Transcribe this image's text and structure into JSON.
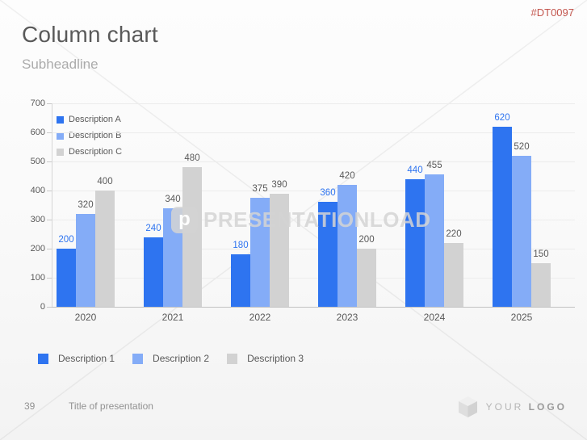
{
  "header": {
    "title": "Column chart",
    "subheadline": "Subheadline",
    "code": "#DT0097"
  },
  "watermark": {
    "text": "PRESENTATIONLOAD",
    "logo_letter": "p"
  },
  "chart_data": {
    "type": "bar",
    "title": "",
    "xlabel": "",
    "ylabel": "",
    "categories": [
      "2020",
      "2021",
      "2022",
      "2023",
      "2024",
      "2025"
    ],
    "series": [
      {
        "name": "Description A",
        "color": "#2e74f0",
        "label_color": "#2e74f0",
        "values": [
          200,
          240,
          180,
          360,
          440,
          620
        ]
      },
      {
        "name": "Description B",
        "color": "#84acf7",
        "label_color": "#595959",
        "values": [
          320,
          340,
          375,
          420,
          455,
          520
        ]
      },
      {
        "name": "Description C",
        "color": "#d2d2d2",
        "label_color": "#595959",
        "values": [
          400,
          480,
          390,
          200,
          220,
          150
        ]
      }
    ],
    "ylim": [
      0,
      700
    ],
    "y_ticks": [
      0,
      100,
      200,
      300,
      400,
      500,
      600,
      700
    ],
    "grid": true,
    "value_labels": true,
    "legend_position": "top-left"
  },
  "chart_legend": {
    "items": [
      {
        "label": "Description A",
        "color": "#2e74f0"
      },
      {
        "label": "Description B",
        "color": "#84acf7"
      },
      {
        "label": "Description C",
        "color": "#d2d2d2"
      }
    ]
  },
  "bottom_legend": {
    "items": [
      {
        "label": "Description 1",
        "color": "#2e74f0"
      },
      {
        "label": "Description 2",
        "color": "#84acf7"
      },
      {
        "label": "Description 3",
        "color": "#d2d2d2"
      }
    ]
  },
  "footer": {
    "page_number": "39",
    "title": "Title of presentation",
    "logo_text_light": "YOUR",
    "logo_text_bold": "LOGO"
  }
}
